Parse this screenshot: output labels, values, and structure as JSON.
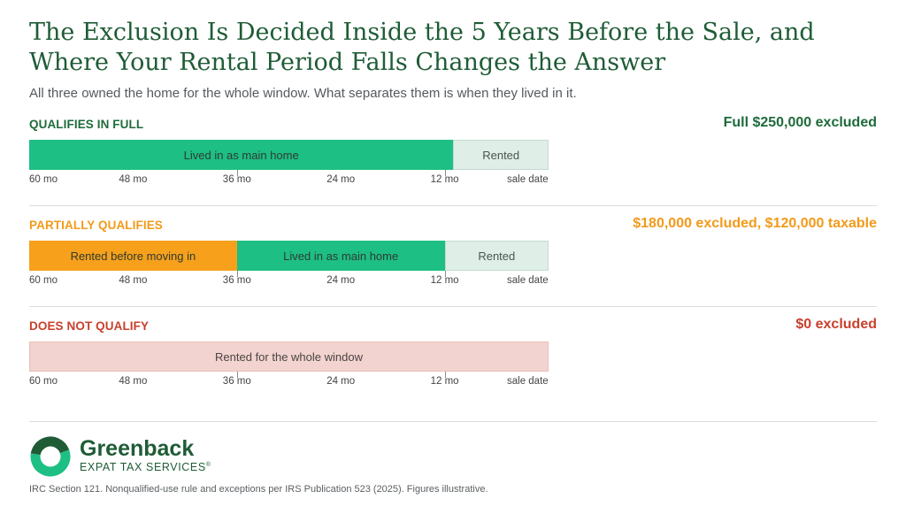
{
  "title": "The Exclusion Is Decided Inside the 5 Years Before the Sale, and Where Your Rental Period Falls Changes the Answer",
  "subtitle": "All three owned the home for the whole window. What separates them is when they lived in it.",
  "axis_labels": [
    "60 mo",
    "48 mo",
    "36 mo",
    "24 mo",
    "12 mo",
    "sale date"
  ],
  "scenarios": [
    {
      "label": "QUALIFIES IN FULL",
      "outcome": "Full $250,000 excluded",
      "color": "#1e6b3b",
      "segments": [
        {
          "label": "Lived in as main home",
          "kind": "lived",
          "start_mo": 60,
          "end_mo": 11
        },
        {
          "label": "Rented",
          "kind": "rented",
          "start_mo": 11,
          "end_mo": 0
        }
      ]
    },
    {
      "label": "PARTIALLY QUALIFIES",
      "outcome": "$180,000 excluded, $120,000 taxable",
      "color": "#f29a1a",
      "segments": [
        {
          "label": "Rented before moving in",
          "kind": "rented-before",
          "start_mo": 60,
          "end_mo": 36
        },
        {
          "label": "Lived in as main home",
          "kind": "lived",
          "start_mo": 36,
          "end_mo": 12
        },
        {
          "label": "Rented",
          "kind": "rented",
          "start_mo": 12,
          "end_mo": 0
        }
      ]
    },
    {
      "label": "DOES NOT QUALIFY",
      "outcome": "$0 excluded",
      "color": "#c8402c",
      "segments": [
        {
          "label": "Rented for the whole window",
          "kind": "rented-whole",
          "start_mo": 60,
          "end_mo": 0
        }
      ]
    }
  ],
  "logo": {
    "name": "Greenback",
    "tagline": "EXPAT TAX SERVICES",
    "trademark": "®"
  },
  "footnote": "IRC Section 121. Nonqualified-use rule and exceptions per IRS Publication 523 (2025). Figures illustrative.",
  "colors": {
    "brand_green": "#1f5c36",
    "lived": "#1dbf84",
    "rented": "#dfeee6",
    "rented_before": "#f7a01b",
    "rented_whole": "#f2d3cf"
  }
}
